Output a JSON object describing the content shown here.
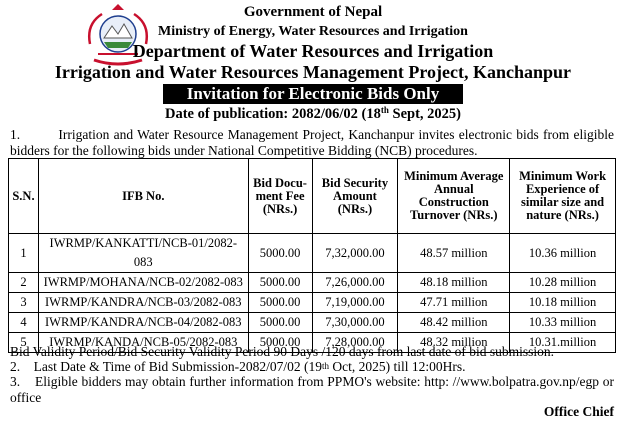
{
  "header": {
    "government": "Government of Nepal",
    "ministry": "Ministry of Energy, Water Resources and Irrigation",
    "department": "Department of Water Resources and Irrigation",
    "project": "Irrigation and Water Resources Management Project, Kanchanpur",
    "banner": "Invitation for Electronic Bids Only",
    "pub_date_prefix": "Date of publication: 2082/06/02 (18",
    "pub_date_sup": "th",
    "pub_date_suffix": " Sept, 2025)"
  },
  "intro": "1.         Irrigation and Water Resource Management Project, Kanchanpur invites electronic bids from eligible bidders for the following bids under National Competitive Bidding (NCB) procedures.",
  "table": {
    "headers": [
      "S.N.",
      "IFB No.",
      "Bid Docu-ment Fee (NRs.)",
      "Bid Security Amount (NRs.)",
      "Minimum Average Annual Construction Turnover (NRs.)",
      "Minimum Work Experience of similar size and nature (NRs.)"
    ],
    "rows": [
      [
        "1",
        "IWRMP/KANKATTI/NCB-01/2082-083",
        "5000.00",
        "7,32,000.00",
        "48.57 million",
        "10.36 million"
      ],
      [
        "2",
        "IWRMP/MOHANA/NCB-02/2082-083",
        "5000.00",
        "7,26,000.00",
        "48.18 million",
        "10.28 million"
      ],
      [
        "3",
        "IWRMP/KANDRA/NCB-03/2082-083",
        "5000.00",
        "7,19,000.00",
        "47.71 million",
        "10.18 million"
      ],
      [
        "4",
        "IWRMP/KANDRA/NCB-04/2082-083",
        "5000.00",
        "7,30,000.00",
        "48.42 million",
        "10.33 million"
      ],
      [
        "5",
        "IWRMP/KANDA/NCB-05/2082-083",
        "5000.00",
        "7,28,000.00",
        "48.32 million",
        "10.31.million"
      ]
    ]
  },
  "notes": {
    "validity": "Bid Validity Period/Bid Security Validity Period 90 Days /120 days from last date of bid submission.",
    "deadline_prefix": "2.    Last Date & Time of Bid Submission-2082/07/02 (19",
    "deadline_sup": "th",
    "deadline_suffix": " Oct, 2025) till 12:00Hrs.",
    "info": "3.    Eligible bidders may obtain further information from PPMO's website: http: //www.bolpatra.gov.np/egp or office"
  },
  "signature": "Office Chief",
  "colors": {
    "emblem_red": "#c8102e",
    "emblem_blue": "#1f3f8f"
  }
}
